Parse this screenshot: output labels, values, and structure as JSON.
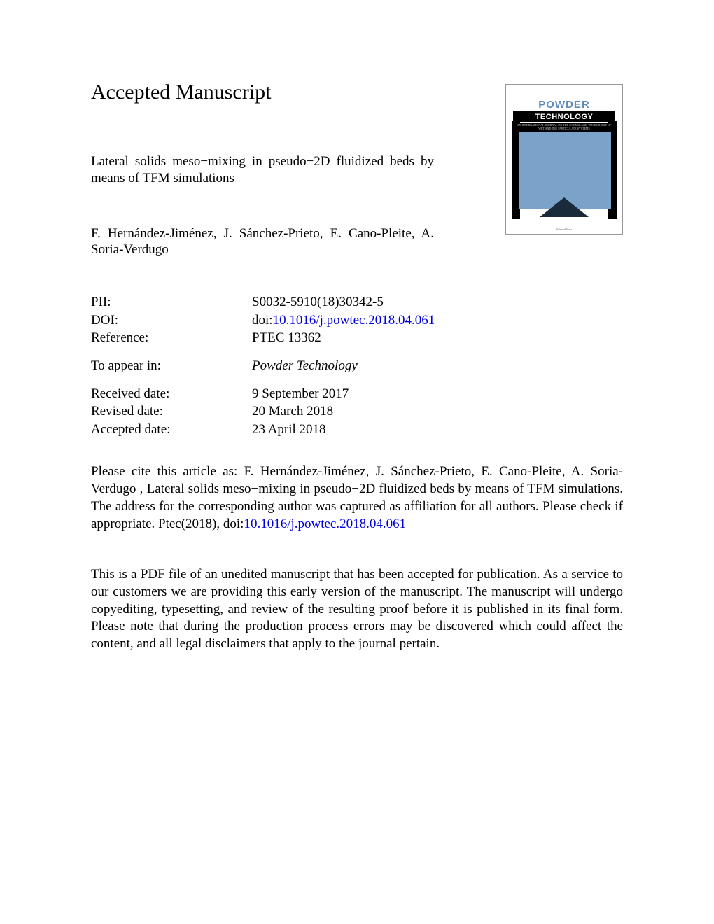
{
  "heading": "Accepted Manuscript",
  "title": "Lateral solids meso−mixing in pseudo−2D fluidized beds by means of TFM simulations",
  "authors": "F. Hernández-Jiménez, J. Sánchez-Prieto, E. Cano-Pleite, A. Soria-Verdugo",
  "meta": {
    "pii_label": "PII:",
    "pii_value": "S0032-5910(18)30342-5",
    "doi_label": "DOI:",
    "doi_prefix": "doi:",
    "doi_value": "10.1016/j.powtec.2018.04.061",
    "ref_label": "Reference:",
    "ref_value": "PTEC 13362",
    "appear_label": "To appear in:",
    "appear_value": "Powder Technology",
    "received_label": "Received date:",
    "received_value": "9 September 2017",
    "revised_label": "Revised date:",
    "revised_value": "20 March 2018",
    "accepted_label": "Accepted date:",
    "accepted_value": "23 April 2018"
  },
  "cite_prefix": "Please cite this article as: F. Hernández-Jiménez, J. Sánchez-Prieto, E. Cano-Pleite, A. Soria-Verdugo , Lateral solids meso−mixing in pseudo−2D fluidized beds by means of TFM simulations. The address for the corresponding author was captured as affiliation for all authors. Please check if appropriate. Ptec(2018), doi:",
  "cite_link": "10.1016/j.powtec.2018.04.061",
  "disclaimer": "This is a PDF file of an unedited manuscript that has been accepted for publication. As a service to our customers we are providing this early version of the manuscript. The manuscript will undergo copyediting, typesetting, and review of the resulting proof before it is published in its final form. Please note that during the production process errors may be discovered which could affect the content, and all legal disclaimers that apply to the journal pertain.",
  "cover": {
    "journal": "POWDER",
    "tech": "TECHNOLOGY",
    "colors": {
      "blue": "#7ba3c9",
      "title": "#5d8bb8",
      "dark": "#1a2a3a"
    }
  },
  "link_color": "#0000dd"
}
